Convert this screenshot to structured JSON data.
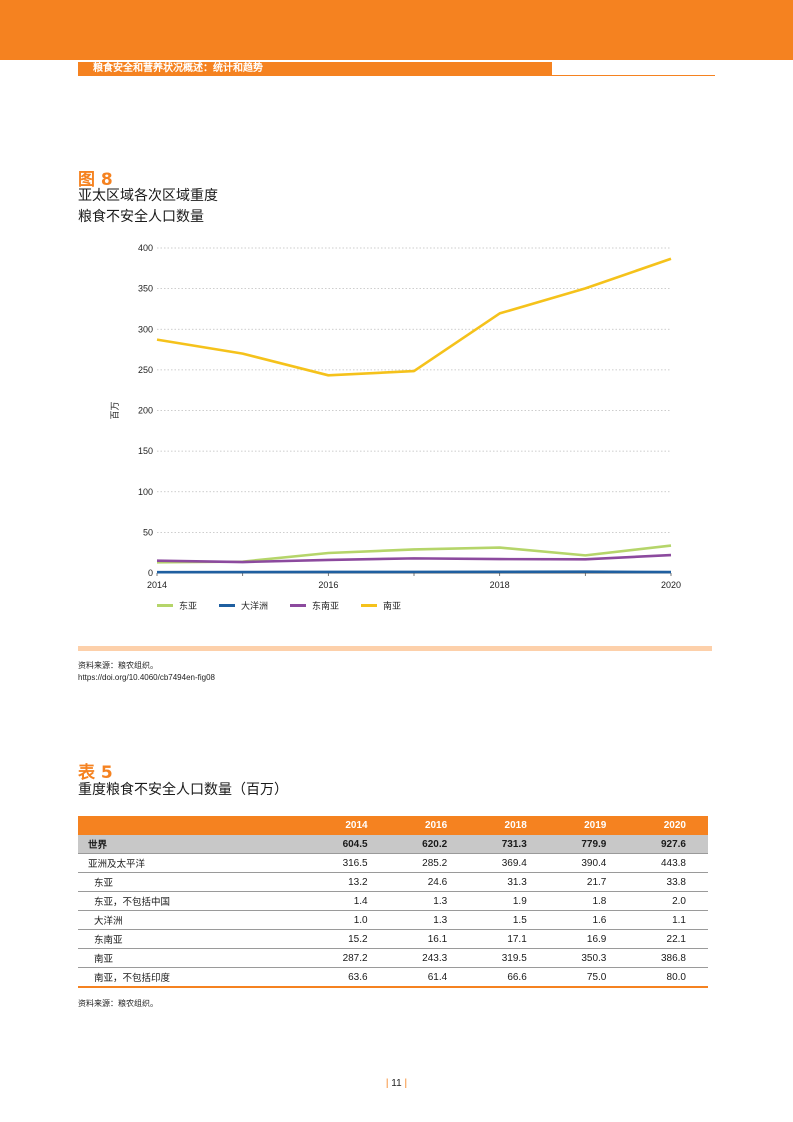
{
  "header": {
    "running_title": "粮食安全和营养状况概述：统计和趋势"
  },
  "figure": {
    "number": "图 8",
    "title_line1": "亚太区域各次区域重度",
    "title_line2": "粮食不安全人口数量",
    "source_line1": "资料来源：粮农组织。",
    "source_line2": "https://doi.org/10.4060/cb7494en-fig08"
  },
  "chart_data": {
    "type": "line",
    "x": [
      2014,
      2015,
      2016,
      2017,
      2018,
      2019,
      2020
    ],
    "x_ticks": [
      "2014",
      "2016",
      "2018",
      "2020"
    ],
    "ylabel": "百万",
    "ylim": [
      0,
      400
    ],
    "y_ticks": [
      "0",
      "50",
      "100",
      "150",
      "200",
      "250",
      "300",
      "350",
      "400"
    ],
    "grid": "horizontal dotted",
    "legend_position": "bottom",
    "series": [
      {
        "name": "东亚",
        "color": "#b5d56a",
        "values": [
          13.2,
          14.0,
          24.6,
          29.0,
          31.3,
          21.7,
          33.8
        ]
      },
      {
        "name": "大洋洲",
        "color": "#1f5fa0",
        "values": [
          1.0,
          1.1,
          1.3,
          1.4,
          1.5,
          1.6,
          1.1
        ]
      },
      {
        "name": "东南亚",
        "color": "#8c4a9e",
        "values": [
          15.2,
          13.5,
          16.1,
          18.0,
          17.1,
          16.9,
          22.1
        ]
      },
      {
        "name": "南亚",
        "color": "#f5c21b",
        "values": [
          287.2,
          270.0,
          243.3,
          248.5,
          319.5,
          350.3,
          386.8
        ]
      }
    ]
  },
  "table": {
    "number": "表 5",
    "title": "重度粮食不安全人口数量（百万）",
    "headers": [
      "",
      "2014",
      "2016",
      "2018",
      "2019",
      "2020"
    ],
    "rows": [
      {
        "label": "世界",
        "values": [
          "604.5",
          "620.2",
          "731.3",
          "779.9",
          "927.6"
        ]
      },
      {
        "label": "亚洲及太平洋",
        "values": [
          "316.5",
          "285.2",
          "369.4",
          "390.4",
          "443.8"
        ]
      },
      {
        "label": "东亚",
        "values": [
          "13.2",
          "24.6",
          "31.3",
          "21.7",
          "33.8"
        ]
      },
      {
        "label": "东亚，不包括中国",
        "values": [
          "1.4",
          "1.3",
          "1.9",
          "1.8",
          "2.0"
        ]
      },
      {
        "label": "大洋洲",
        "values": [
          "1.0",
          "1.3",
          "1.5",
          "1.6",
          "1.1"
        ]
      },
      {
        "label": "东南亚",
        "values": [
          "15.2",
          "16.1",
          "17.1",
          "16.9",
          "22.1"
        ]
      },
      {
        "label": "南亚",
        "values": [
          "287.2",
          "243.3",
          "319.5",
          "350.3",
          "386.8"
        ]
      },
      {
        "label": "南亚，不包括印度",
        "values": [
          "63.6",
          "61.4",
          "66.6",
          "75.0",
          "80.0"
        ]
      }
    ],
    "source": "资料来源：粮农组织。"
  },
  "footer": {
    "page_number": "11"
  },
  "colors": {
    "accent": "#f58220",
    "light_accent": "#fdd0aa",
    "world_row": "#c8c8c8"
  }
}
